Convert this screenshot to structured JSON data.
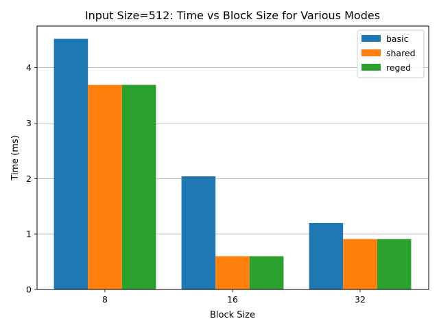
{
  "chart_data": {
    "type": "bar",
    "title": "Input Size=512: Time vs Block Size for Various Modes",
    "xlabel": "Block Size",
    "ylabel": "Time (ms)",
    "categories": [
      "8",
      "16",
      "32"
    ],
    "series": [
      {
        "name": "basic",
        "color": "#1f77b4",
        "values": [
          4.52,
          2.04,
          1.2
        ]
      },
      {
        "name": "shared",
        "color": "#ff7f0e",
        "values": [
          3.69,
          0.6,
          0.91
        ]
      },
      {
        "name": "reged",
        "color": "#2ca02c",
        "values": [
          3.69,
          0.6,
          0.91
        ]
      }
    ],
    "ylim": [
      0,
      4.75
    ],
    "yticks": [
      0,
      1,
      2,
      3,
      4
    ],
    "ytick_labels": [
      "0",
      "1",
      "2",
      "3",
      "4"
    ],
    "grid": "y",
    "legend_position": "top-right"
  }
}
